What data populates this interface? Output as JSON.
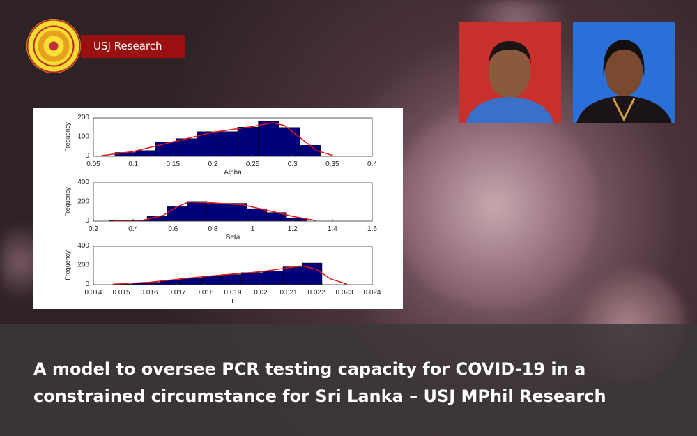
{
  "brand": {
    "label": "USJ Research",
    "logo_text": "University of Sri Jayewardenepura seal"
  },
  "headline": {
    "line1": "A model to oversee PCR testing capacity for COVID-19 in a",
    "line2": "constrained circumstance for Sri Lanka – USJ MPhil Research"
  },
  "chart_data": [
    {
      "type": "bar",
      "xlabel": "Alpha",
      "ylabel": "Frequency",
      "xlim": [
        0.05,
        0.4
      ],
      "ylim": [
        0,
        200
      ],
      "xticks": [
        "0.05",
        "0.1",
        "0.15",
        "0.2",
        "0.25",
        "0.3",
        "0.35",
        "0.4"
      ],
      "yticks": [
        "0",
        "100",
        "200"
      ],
      "bin_edges": [
        0.077,
        0.103,
        0.128,
        0.154,
        0.18,
        0.205,
        0.231,
        0.257,
        0.283,
        0.309,
        0.335
      ],
      "values": [
        20,
        30,
        75,
        92,
        128,
        128,
        152,
        182,
        150,
        57
      ],
      "fit": {
        "x": [
          0.06,
          0.1,
          0.15,
          0.2,
          0.25,
          0.275,
          0.29,
          0.31,
          0.33,
          0.35
        ],
        "y": [
          3,
          25,
          75,
          125,
          155,
          175,
          160,
          95,
          30,
          5
        ]
      }
    },
    {
      "type": "bar",
      "xlabel": "Beta",
      "ylabel": "Frequency",
      "xlim": [
        0.2,
        1.6
      ],
      "ylim": [
        0,
        400
      ],
      "xticks": [
        "0.2",
        "0.4",
        "0.6",
        "0.8",
        "1",
        "1.2",
        "1.4",
        "1.6"
      ],
      "yticks": [
        "0",
        "200",
        "400"
      ],
      "bin_edges": [
        0.28,
        0.38,
        0.47,
        0.57,
        0.67,
        0.77,
        0.87,
        0.97,
        1.07,
        1.17,
        1.27
      ],
      "values": [
        5,
        10,
        50,
        150,
        205,
        185,
        185,
        130,
        90,
        35
      ],
      "fit": {
        "x": [
          0.3,
          0.45,
          0.55,
          0.62,
          0.68,
          0.8,
          0.95,
          1.1,
          1.2,
          1.32
        ],
        "y": [
          5,
          10,
          60,
          150,
          200,
          190,
          170,
          100,
          50,
          5
        ]
      }
    },
    {
      "type": "bar",
      "xlabel": "r",
      "ylabel": "Frequency",
      "xlim": [
        0.014,
        0.024
      ],
      "ylim": [
        0,
        400
      ],
      "xticks": [
        "0.014",
        "0.015",
        "0.016",
        "0.017",
        "0.018",
        "0.019",
        "0.02",
        "0.021",
        "0.022",
        "0.023",
        "0.024"
      ],
      "yticks": [
        "0",
        "200",
        "400"
      ],
      "bin_edges": [
        0.0147,
        0.0154,
        0.0161,
        0.0164,
        0.0171,
        0.0179,
        0.0186,
        0.0193,
        0.0201,
        0.0208,
        0.0215,
        0.0222
      ],
      "values": [
        5,
        15,
        25,
        45,
        65,
        85,
        105,
        125,
        140,
        185,
        225
      ],
      "fit": {
        "x": [
          0.0147,
          0.016,
          0.017,
          0.018,
          0.019,
          0.02,
          0.021,
          0.0215,
          0.022,
          0.0225,
          0.0231
        ],
        "y": [
          5,
          25,
          55,
          85,
          110,
          135,
          175,
          195,
          160,
          60,
          5
        ]
      }
    }
  ]
}
